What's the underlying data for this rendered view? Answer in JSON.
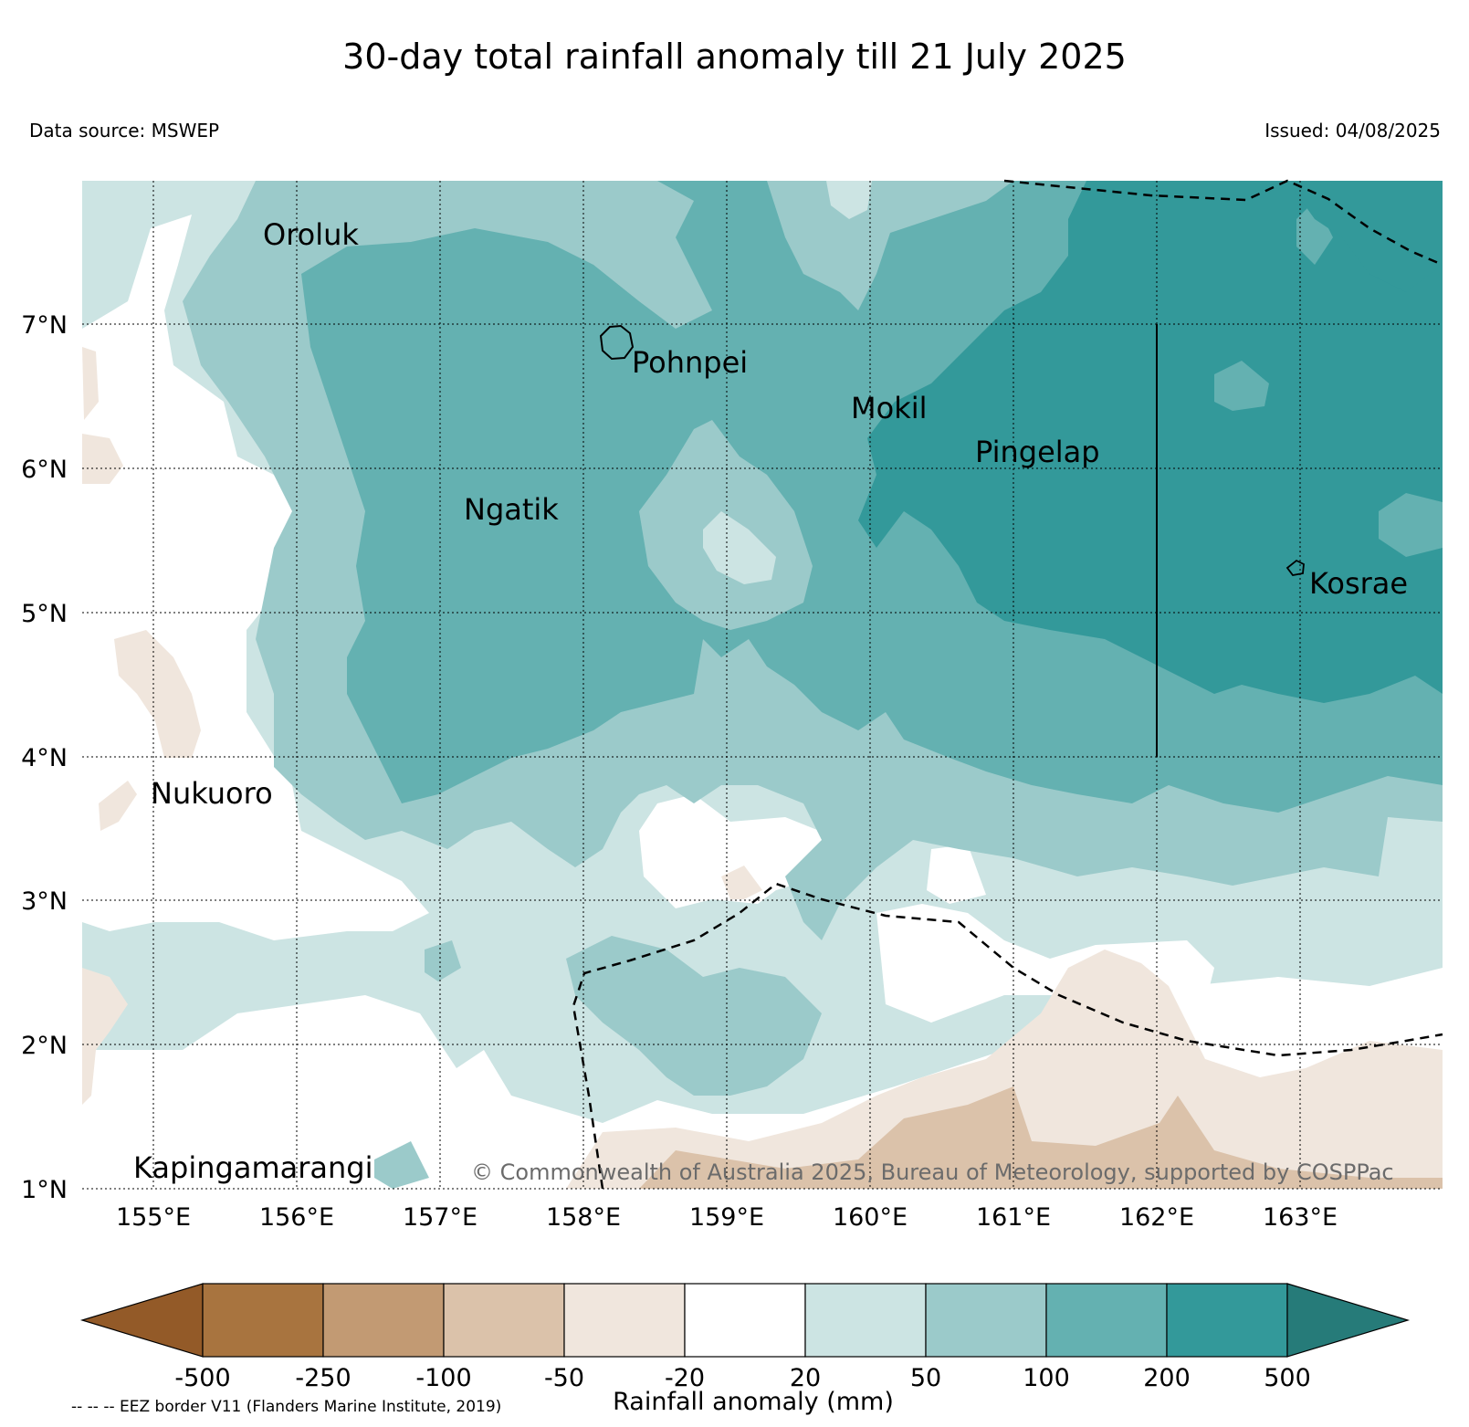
{
  "header": {
    "title": "30-day total rainfall anomaly till 21 July 2025",
    "data_source": "Data source: MSWEP",
    "issued": "Issued: 04/08/2025"
  },
  "map": {
    "lat_ticks": [
      "7°N",
      "6°N",
      "5°N",
      "4°N",
      "3°N",
      "2°N",
      "1°N"
    ],
    "lon_ticks": [
      "155°E",
      "156°E",
      "157°E",
      "158°E",
      "159°E",
      "160°E",
      "161°E",
      "162°E",
      "163°E"
    ],
    "places": [
      {
        "name": "Oroluk",
        "lon": 155.75,
        "lat": 7.62
      },
      {
        "name": "Pohnpei",
        "lon": 158.22,
        "lat": 6.87
      },
      {
        "name": "Mokil",
        "lon": 160.01,
        "lat": 6.57
      },
      {
        "name": "Pingelap",
        "lon": 160.7,
        "lat": 6.22
      },
      {
        "name": "Ngatik",
        "lon": 157.15,
        "lat": 5.8
      },
      {
        "name": "Kosrae",
        "lon": 162.98,
        "lat": 5.31
      },
      {
        "name": "Nukuoro",
        "lon": 154.97,
        "lat": 3.86
      },
      {
        "name": "Kapingamarangi",
        "lon": 154.78,
        "lat": 1.07
      }
    ],
    "copyright": "© Commonwealth of Australia 2025, Bureau of Meteorology, supported by COSPPac",
    "eez_note": "-- -- -- EEZ border V11 (Flanders Marine Institute, 2019)"
  },
  "colorbar": {
    "title": "Rainfall anomaly (mm)",
    "tick_labels": [
      "-500",
      "-250",
      "-100",
      "-50",
      "-20",
      "20",
      "50",
      "100",
      "200",
      "500"
    ],
    "colors": [
      "#935a28",
      "#a8743f",
      "#c29a73",
      "#dbc2aa",
      "#f0e6dd",
      "#ffffff",
      "#cce4e3",
      "#9bcaca",
      "#64b1b1",
      "#33999a",
      "#267b79"
    ]
  }
}
